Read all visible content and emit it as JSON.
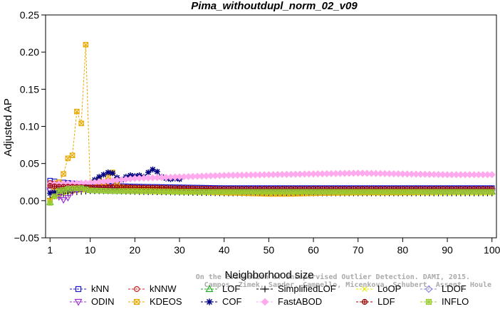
{
  "chart_data": {
    "type": "line",
    "title": "Pima_withoutdupl_norm_02_v09",
    "xlabel": "Neighborhood size",
    "ylabel": "Adjusted AP",
    "xlim": [
      0,
      101
    ],
    "ylim": [
      -0.05,
      0.25
    ],
    "xticks": [
      1,
      10,
      20,
      30,
      40,
      50,
      60,
      70,
      80,
      90,
      100
    ],
    "yticks": [
      -0.05,
      0.0,
      0.05,
      0.1,
      0.15,
      0.2,
      0.25
    ],
    "ytick_labels": [
      "−0.05",
      "0.00",
      "0.05",
      "0.10",
      "0.15",
      "0.20",
      "0.25"
    ],
    "grid": false,
    "legend_position": "bottom",
    "credit_lines": [
      "Campos, Zimek, Sander, Campello, Micenkova, Schubert, Assent, Houle",
      "On the Evaluation of Unsupervised Outlier Detection. DAMI, 2015."
    ],
    "series": [
      {
        "name": "kNN",
        "color": "#1a1acc",
        "marker": "square",
        "points": [
          [
            1,
            0.027
          ],
          [
            3,
            0.025
          ],
          [
            5,
            0.024
          ],
          [
            8,
            0.022
          ],
          [
            10,
            0.021
          ],
          [
            15,
            0.02
          ],
          [
            20,
            0.019
          ],
          [
            30,
            0.018
          ],
          [
            40,
            0.017
          ],
          [
            50,
            0.017
          ],
          [
            60,
            0.017
          ],
          [
            70,
            0.017
          ],
          [
            80,
            0.017
          ],
          [
            90,
            0.017
          ],
          [
            100,
            0.017
          ]
        ]
      },
      {
        "name": "kNNW",
        "color": "#cc2222",
        "marker": "circle",
        "points": [
          [
            1,
            0.024
          ],
          [
            3,
            0.023
          ],
          [
            5,
            0.022
          ],
          [
            8,
            0.021
          ],
          [
            10,
            0.02
          ],
          [
            15,
            0.019
          ],
          [
            20,
            0.018
          ],
          [
            30,
            0.017
          ],
          [
            40,
            0.016
          ],
          [
            50,
            0.016
          ],
          [
            60,
            0.016
          ],
          [
            70,
            0.016
          ],
          [
            80,
            0.016
          ],
          [
            90,
            0.016
          ],
          [
            100,
            0.016
          ]
        ]
      },
      {
        "name": "LOF",
        "color": "#22aa22",
        "marker": "triangle",
        "points": [
          [
            1,
            -0.002
          ],
          [
            2,
            0.008
          ],
          [
            3,
            0.014
          ],
          [
            5,
            0.015
          ],
          [
            8,
            0.016
          ],
          [
            10,
            0.014
          ],
          [
            15,
            0.013
          ],
          [
            20,
            0.013
          ],
          [
            25,
            0.013
          ],
          [
            30,
            0.013
          ],
          [
            40,
            0.013
          ],
          [
            50,
            0.012
          ],
          [
            60,
            0.012
          ],
          [
            70,
            0.012
          ],
          [
            80,
            0.012
          ],
          [
            90,
            0.012
          ],
          [
            100,
            0.012
          ]
        ]
      },
      {
        "name": "SimplifiedLOF",
        "color": "#000000",
        "marker": "plus",
        "points": [
          [
            1,
            0.003
          ],
          [
            2,
            0.006
          ],
          [
            4,
            0.009
          ],
          [
            6,
            0.011
          ],
          [
            8,
            0.012
          ],
          [
            10,
            0.013
          ],
          [
            15,
            0.013
          ],
          [
            20,
            0.012
          ],
          [
            30,
            0.011
          ],
          [
            40,
            0.01
          ],
          [
            50,
            0.01
          ],
          [
            60,
            0.01
          ],
          [
            70,
            0.01
          ],
          [
            80,
            0.01
          ],
          [
            90,
            0.01
          ],
          [
            100,
            0.01
          ]
        ]
      },
      {
        "name": "LoOP",
        "color": "#e8e800",
        "marker": "x",
        "points": [
          [
            1,
            0.001
          ],
          [
            3,
            0.008
          ],
          [
            5,
            0.012
          ],
          [
            8,
            0.014
          ],
          [
            10,
            0.014
          ],
          [
            15,
            0.013
          ],
          [
            20,
            0.012
          ],
          [
            30,
            0.011
          ],
          [
            40,
            0.01
          ],
          [
            50,
            0.01
          ],
          [
            60,
            0.01
          ],
          [
            70,
            0.01
          ],
          [
            80,
            0.01
          ],
          [
            90,
            0.01
          ],
          [
            100,
            0.01
          ]
        ]
      },
      {
        "name": "LDOF",
        "color": "#8888dd",
        "marker": "diamond",
        "points": [
          [
            1,
            0.015
          ],
          [
            3,
            0.016
          ],
          [
            5,
            0.016
          ],
          [
            10,
            0.016
          ],
          [
            15,
            0.015
          ],
          [
            20,
            0.015
          ],
          [
            30,
            0.015
          ],
          [
            40,
            0.014
          ],
          [
            50,
            0.014
          ],
          [
            60,
            0.014
          ],
          [
            70,
            0.014
          ],
          [
            80,
            0.014
          ],
          [
            90,
            0.014
          ],
          [
            100,
            0.014
          ]
        ]
      },
      {
        "name": "ODIN",
        "color": "#9933cc",
        "marker": "triangle-down",
        "points": [
          [
            1,
            0.014
          ],
          [
            2,
            0.01
          ],
          [
            3,
            0.005
          ],
          [
            4,
            0.001
          ],
          [
            5,
            0.004
          ],
          [
            6,
            0.012
          ],
          [
            8,
            0.015
          ],
          [
            10,
            0.016
          ],
          [
            15,
            0.015
          ],
          [
            20,
            0.014
          ],
          [
            30,
            0.014
          ],
          [
            40,
            0.013
          ],
          [
            50,
            0.013
          ],
          [
            60,
            0.013
          ],
          [
            70,
            0.013
          ],
          [
            80,
            0.013
          ],
          [
            90,
            0.013
          ],
          [
            100,
            0.013
          ]
        ]
      },
      {
        "name": "KDEOS",
        "color": "#e8a800",
        "marker": "boxx",
        "points": [
          [
            1,
            0.0
          ],
          [
            2,
            0.014
          ],
          [
            3,
            0.025
          ],
          [
            4,
            0.036
          ],
          [
            5,
            0.057
          ],
          [
            6,
            0.061
          ],
          [
            7,
            0.12
          ],
          [
            8,
            0.104
          ],
          [
            9,
            0.21
          ],
          [
            10,
            0.02
          ],
          [
            11,
            0.025
          ],
          [
            12,
            0.028
          ],
          [
            13,
            0.024
          ],
          [
            14,
            0.032
          ],
          [
            15,
            0.038
          ],
          [
            16,
            0.022
          ],
          [
            17,
            0.018
          ],
          [
            20,
            0.016
          ],
          [
            25,
            0.015
          ],
          [
            30,
            0.014
          ],
          [
            35,
            0.012
          ],
          [
            40,
            0.011
          ],
          [
            45,
            0.01
          ],
          [
            50,
            0.009
          ],
          [
            55,
            0.009
          ],
          [
            60,
            0.01
          ],
          [
            70,
            0.011
          ],
          [
            80,
            0.011
          ],
          [
            90,
            0.012
          ],
          [
            100,
            0.012
          ]
        ]
      },
      {
        "name": "COF",
        "color": "#000080",
        "marker": "star",
        "points": [
          [
            1,
            0.01
          ],
          [
            3,
            0.012
          ],
          [
            5,
            0.015
          ],
          [
            8,
            0.018
          ],
          [
            10,
            0.022
          ],
          [
            11,
            0.028
          ],
          [
            12,
            0.032
          ],
          [
            13,
            0.035
          ],
          [
            14,
            0.038
          ],
          [
            15,
            0.037
          ],
          [
            16,
            0.031
          ],
          [
            17,
            0.028
          ],
          [
            18,
            0.032
          ],
          [
            19,
            0.034
          ],
          [
            20,
            0.033
          ],
          [
            21,
            0.034
          ],
          [
            22,
            0.032
          ],
          [
            23,
            0.038
          ],
          [
            24,
            0.042
          ],
          [
            25,
            0.039
          ],
          [
            26,
            0.032
          ],
          [
            27,
            0.03
          ],
          [
            28,
            0.029
          ],
          [
            29,
            0.03
          ],
          [
            30,
            0.029
          ]
        ]
      },
      {
        "name": "FastABOD",
        "color": "#ffaaee",
        "marker": "diamond-filled",
        "points": [
          [
            1,
            0.022
          ],
          [
            5,
            0.023
          ],
          [
            10,
            0.024
          ],
          [
            15,
            0.027
          ],
          [
            20,
            0.03
          ],
          [
            25,
            0.031
          ],
          [
            30,
            0.032
          ],
          [
            40,
            0.034
          ],
          [
            50,
            0.035
          ],
          [
            60,
            0.036
          ],
          [
            70,
            0.037
          ],
          [
            80,
            0.036
          ],
          [
            90,
            0.035
          ],
          [
            100,
            0.035
          ]
        ]
      },
      {
        "name": "LDF",
        "color": "#990000",
        "marker": "circle-plus",
        "points": [
          [
            1,
            0.02
          ],
          [
            3,
            0.019
          ],
          [
            5,
            0.019
          ],
          [
            10,
            0.018
          ],
          [
            15,
            0.018
          ],
          [
            20,
            0.018
          ],
          [
            30,
            0.017
          ],
          [
            40,
            0.016
          ],
          [
            50,
            0.016
          ],
          [
            60,
            0.016
          ],
          [
            70,
            0.016
          ],
          [
            80,
            0.016
          ],
          [
            90,
            0.016
          ],
          [
            100,
            0.016
          ]
        ]
      },
      {
        "name": "INFLO",
        "color": "#99cc33",
        "marker": "box-star",
        "points": [
          [
            1,
            -0.003
          ],
          [
            2,
            0.006
          ],
          [
            3,
            0.013
          ],
          [
            5,
            0.016
          ],
          [
            8,
            0.017
          ],
          [
            10,
            0.014
          ],
          [
            15,
            0.013
          ],
          [
            20,
            0.013
          ],
          [
            30,
            0.012
          ],
          [
            40,
            0.012
          ],
          [
            50,
            0.012
          ],
          [
            60,
            0.012
          ],
          [
            70,
            0.012
          ],
          [
            80,
            0.012
          ],
          [
            90,
            0.012
          ],
          [
            100,
            0.012
          ]
        ]
      }
    ]
  }
}
